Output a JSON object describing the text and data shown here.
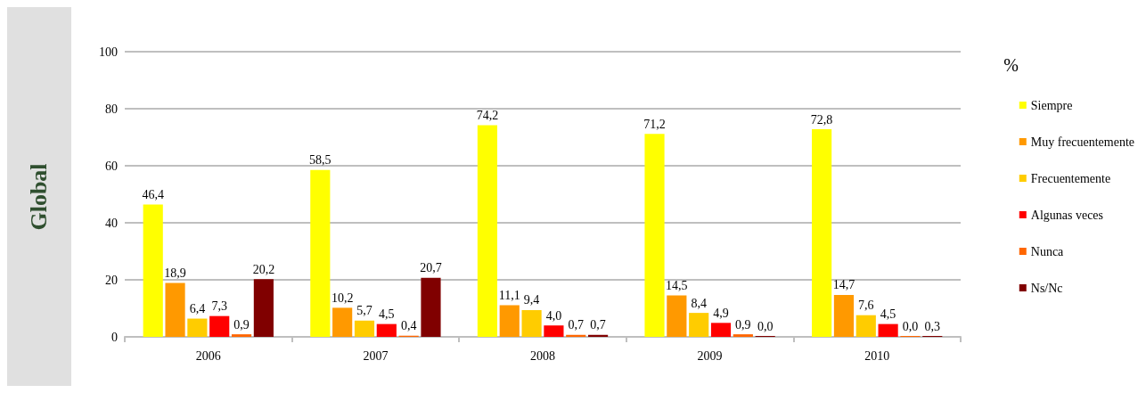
{
  "chart_data": {
    "type": "bar",
    "categories": [
      "2006",
      "2007",
      "2008",
      "2009",
      "2010"
    ],
    "series": [
      {
        "name": "Siempre",
        "color": "#ffff00",
        "values": [
          46.4,
          58.5,
          74.2,
          71.2,
          72.8
        ],
        "value_labels": [
          "46,4",
          "58,5",
          "74,2",
          "71,2",
          "72,8"
        ]
      },
      {
        "name": "Muy frecuentemente",
        "color": "#ff9900",
        "values": [
          18.9,
          10.2,
          11.1,
          14.5,
          14.7
        ],
        "value_labels": [
          "18,9",
          "10,2",
          "11,1",
          "14,5",
          "14,7"
        ]
      },
      {
        "name": "Frecuentemente",
        "color": "#ffcc00",
        "values": [
          6.4,
          5.7,
          9.4,
          8.4,
          7.6
        ],
        "value_labels": [
          "6,4",
          "5,7",
          "9,4",
          "8,4",
          "7,6"
        ]
      },
      {
        "name": "Algunas veces",
        "color": "#ff0000",
        "values": [
          7.3,
          4.5,
          4.0,
          4.9,
          4.5
        ],
        "value_labels": [
          "7,3",
          "4,5",
          "4,0",
          "4,9",
          "4,5"
        ]
      },
      {
        "name": "Nunca",
        "color": "#ff6600",
        "values": [
          0.9,
          0.4,
          0.7,
          0.9,
          0.0
        ],
        "value_labels": [
          "0,9",
          "0,4",
          "0,7",
          "0,9",
          "0,0"
        ]
      },
      {
        "name": "Ns/Nc",
        "color": "#800000",
        "values": [
          20.2,
          20.7,
          0.7,
          0.0,
          0.3
        ],
        "value_labels": [
          "20,2",
          "20,7",
          "0,7",
          "0,0",
          "0,3"
        ]
      }
    ],
    "ylim": [
      0,
      100
    ],
    "yticks": [
      0,
      20,
      40,
      60,
      80,
      100
    ],
    "grid": "y",
    "legend": "right",
    "annotations": [
      "Global",
      "%"
    ]
  }
}
